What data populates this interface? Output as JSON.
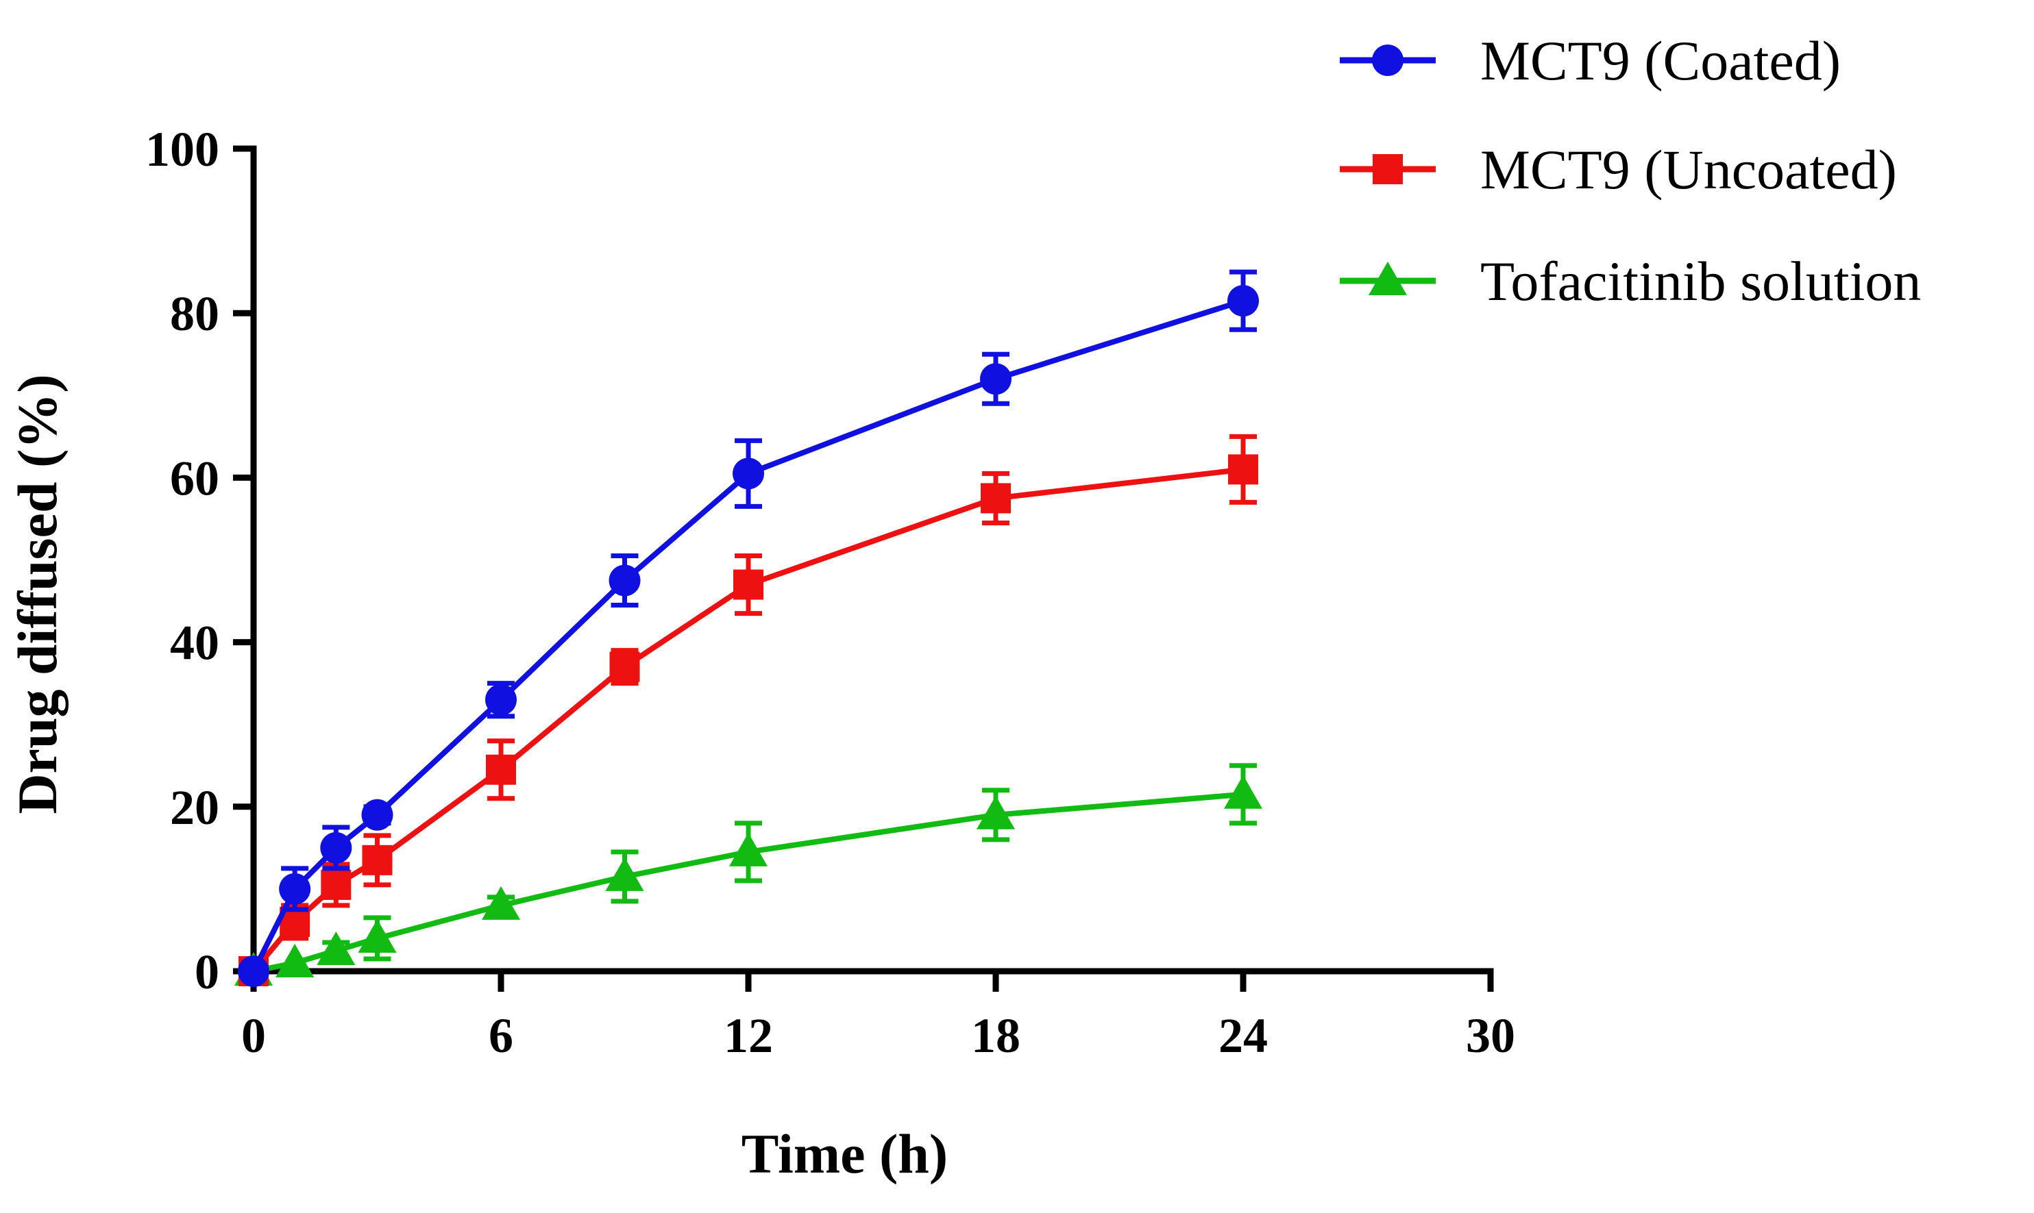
{
  "chart_data": {
    "type": "line",
    "xlabel": "Time (h)",
    "ylabel": "Drug diffused (%)",
    "xlim": [
      0,
      30
    ],
    "ylim": [
      0,
      100
    ],
    "xticks": [
      0,
      6,
      12,
      18,
      24,
      30
    ],
    "yticks": [
      0,
      20,
      40,
      60,
      80,
      100
    ],
    "grid": false,
    "legend_position": "top-right",
    "series": [
      {
        "name": "MCT9 (Coated)",
        "color": "#1010E0",
        "marker": "circle",
        "x": [
          0,
          1,
          2,
          3,
          6,
          9,
          12,
          18,
          24
        ],
        "y": [
          0,
          10,
          15,
          19,
          33,
          47.5,
          60.5,
          72,
          81.5
        ],
        "err": [
          0.5,
          2.5,
          2.5,
          1,
          2,
          3,
          4,
          3,
          3.5
        ]
      },
      {
        "name": "MCT9 (Uncoated)",
        "color": "#EE1111",
        "marker": "square",
        "x": [
          0,
          1,
          2,
          3,
          6,
          9,
          12,
          18,
          24
        ],
        "y": [
          0,
          6,
          10.5,
          13.5,
          24.5,
          37,
          47,
          57.5,
          61
        ],
        "err": [
          0.5,
          2,
          2.5,
          3,
          3.5,
          2,
          3.5,
          3,
          4
        ]
      },
      {
        "name": "Tofacitinib solution",
        "color": "#11BB11",
        "marker": "triangle",
        "x": [
          0,
          1,
          2,
          3,
          6,
          9,
          12,
          18,
          24
        ],
        "y": [
          0,
          1,
          2.5,
          4,
          8,
          11.5,
          14.5,
          19,
          21.5
        ],
        "err": [
          0.3,
          0.5,
          1,
          2.5,
          1,
          3,
          3.5,
          3,
          3.5
        ]
      }
    ]
  }
}
